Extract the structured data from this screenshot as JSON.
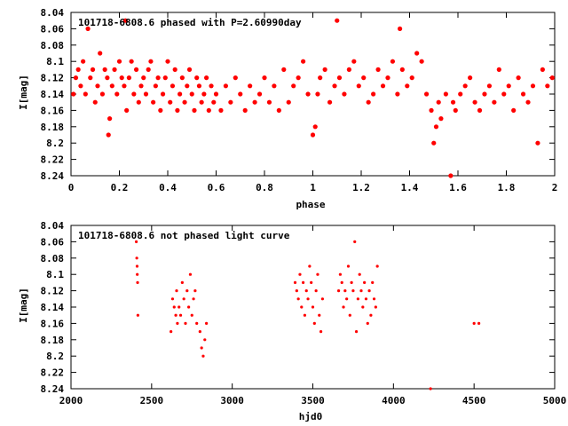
{
  "chart_data": [
    {
      "type": "scatter",
      "title": "101718-6808.6 phased with P=2.60990day",
      "xlabel": "phase",
      "ylabel": "I[mag]",
      "xlim": [
        0,
        2
      ],
      "ylim": [
        8.24,
        8.04
      ],
      "y_inverted": true,
      "xticks": [
        "0",
        "0.2",
        "0.4",
        "0.6",
        "0.8",
        "1",
        "1.2",
        "1.4",
        "1.6",
        "1.8",
        "2"
      ],
      "yticks": [
        "8.04",
        "8.06",
        "8.08",
        "8.1",
        "8.12",
        "8.14",
        "8.16",
        "8.18",
        "8.2",
        "8.22",
        "8.24"
      ],
      "marker_color": "#ff0000",
      "marker": "filled-dot",
      "series": [
        {
          "x": [
            0.01,
            0.02,
            0.03,
            0.04,
            0.05,
            0.06,
            0.07,
            0.08,
            0.09,
            0.1,
            0.11,
            0.12,
            0.13,
            0.14,
            0.15,
            0.155,
            0.16,
            0.17,
            0.18,
            0.19,
            0.2,
            0.21,
            0.22,
            0.225,
            0.23,
            0.24,
            0.25,
            0.26,
            0.27,
            0.28,
            0.29,
            0.3,
            0.31,
            0.32,
            0.33,
            0.34,
            0.35,
            0.36,
            0.37,
            0.38,
            0.39,
            0.4,
            0.41,
            0.42,
            0.43,
            0.44,
            0.45,
            0.46,
            0.47,
            0.48,
            0.49,
            0.5,
            0.51,
            0.52,
            0.53,
            0.54,
            0.55,
            0.56,
            0.57,
            0.58,
            0.59,
            0.6,
            0.62,
            0.64,
            0.66,
            0.68,
            0.7,
            0.72,
            0.74,
            0.76,
            0.78,
            0.8,
            0.82,
            0.84,
            0.86,
            0.88,
            0.9,
            0.92,
            0.94,
            0.96,
            0.98,
            1.0,
            1.01,
            1.02,
            1.03,
            1.05,
            1.07,
            1.09,
            1.1,
            1.11,
            1.13,
            1.15,
            1.17,
            1.19,
            1.21,
            1.23,
            1.25,
            1.27,
            1.29,
            1.31,
            1.33,
            1.35,
            1.36,
            1.37,
            1.39,
            1.41,
            1.43,
            1.45,
            1.47,
            1.49,
            1.5,
            1.51,
            1.52,
            1.53,
            1.55,
            1.57,
            1.58,
            1.59,
            1.61,
            1.63,
            1.65,
            1.67,
            1.69,
            1.71,
            1.73,
            1.75,
            1.77,
            1.79,
            1.81,
            1.83,
            1.85,
            1.87,
            1.89,
            1.91,
            1.93,
            1.95,
            1.97,
            1.99
          ],
          "y": [
            8.14,
            8.12,
            8.11,
            8.13,
            8.1,
            8.14,
            8.06,
            8.12,
            8.11,
            8.15,
            8.13,
            8.09,
            8.14,
            8.11,
            8.12,
            8.19,
            8.17,
            8.13,
            8.11,
            8.14,
            8.1,
            8.12,
            8.13,
            8.05,
            8.16,
            8.12,
            8.1,
            8.14,
            8.11,
            8.15,
            8.13,
            8.12,
            8.14,
            8.11,
            8.1,
            8.15,
            8.13,
            8.12,
            8.16,
            8.14,
            8.12,
            8.1,
            8.15,
            8.13,
            8.11,
            8.16,
            8.14,
            8.12,
            8.15,
            8.13,
            8.11,
            8.14,
            8.16,
            8.12,
            8.13,
            8.15,
            8.14,
            8.12,
            8.16,
            8.13,
            8.15,
            8.14,
            8.16,
            8.13,
            8.15,
            8.12,
            8.14,
            8.16,
            8.13,
            8.15,
            8.14,
            8.12,
            8.15,
            8.13,
            8.16,
            8.11,
            8.15,
            8.13,
            8.12,
            8.1,
            8.14,
            8.19,
            8.18,
            8.14,
            8.12,
            8.11,
            8.15,
            8.13,
            8.05,
            8.12,
            8.14,
            8.11,
            8.1,
            8.13,
            8.12,
            8.15,
            8.14,
            8.11,
            8.13,
            8.12,
            8.1,
            8.14,
            8.06,
            8.11,
            8.13,
            8.12,
            8.09,
            8.1,
            8.14,
            8.16,
            8.2,
            8.18,
            8.15,
            8.17,
            8.14,
            8.24,
            8.15,
            8.16,
            8.14,
            8.13,
            8.12,
            8.15,
            8.16,
            8.14,
            8.13,
            8.15,
            8.11,
            8.14,
            8.13,
            8.16,
            8.12,
            8.14,
            8.15,
            8.13,
            8.2,
            8.11,
            8.13,
            8.12
          ]
        }
      ]
    },
    {
      "type": "scatter",
      "title": "101718-6808.6 not phased light curve",
      "xlabel": "hjd0",
      "ylabel": "I[mag]",
      "xlim": [
        2000,
        5000
      ],
      "ylim": [
        8.24,
        8.04
      ],
      "y_inverted": true,
      "xticks": [
        "2000",
        "2500",
        "3000",
        "3500",
        "4000",
        "4500",
        "5000"
      ],
      "yticks": [
        "8.04",
        "8.06",
        "8.08",
        "8.1",
        "8.12",
        "8.14",
        "8.16",
        "8.18",
        "8.2",
        "8.22",
        "8.24"
      ],
      "marker_color": "#ff0000",
      "marker": "small-dot",
      "series": [
        {
          "x": [
            2405,
            2408,
            2410,
            2411,
            2413,
            2415,
            2620,
            2630,
            2640,
            2650,
            2655,
            2660,
            2670,
            2680,
            2690,
            2700,
            2710,
            2720,
            2730,
            2740,
            2750,
            2760,
            2770,
            2780,
            2800,
            2810,
            2820,
            2830,
            2840,
            3390,
            3400,
            3410,
            3420,
            3430,
            3440,
            3450,
            3460,
            3470,
            3480,
            3490,
            3500,
            3510,
            3520,
            3530,
            3540,
            3550,
            3560,
            3660,
            3670,
            3680,
            3690,
            3700,
            3710,
            3720,
            3730,
            3740,
            3750,
            3760,
            3770,
            3780,
            3790,
            3800,
            3810,
            3820,
            3830,
            3840,
            3850,
            3860,
            3870,
            3880,
            3890,
            3900,
            4230,
            4500,
            4530
          ],
          "y": [
            8.06,
            8.08,
            8.09,
            8.1,
            8.11,
            8.15,
            8.17,
            8.13,
            8.14,
            8.15,
            8.12,
            8.16,
            8.14,
            8.15,
            8.11,
            8.13,
            8.16,
            8.12,
            8.14,
            8.1,
            8.15,
            8.13,
            8.12,
            8.16,
            8.17,
            8.19,
            8.2,
            8.18,
            8.16,
            8.11,
            8.12,
            8.13,
            8.1,
            8.14,
            8.11,
            8.15,
            8.12,
            8.13,
            8.09,
            8.11,
            8.14,
            8.16,
            8.12,
            8.1,
            8.15,
            8.17,
            8.13,
            8.12,
            8.1,
            8.11,
            8.14,
            8.12,
            8.13,
            8.09,
            8.15,
            8.11,
            8.12,
            8.06,
            8.17,
            8.13,
            8.1,
            8.12,
            8.14,
            8.11,
            8.13,
            8.16,
            8.12,
            8.15,
            8.11,
            8.13,
            8.14,
            8.09,
            8.24,
            8.16,
            8.16
          ]
        }
      ]
    }
  ]
}
